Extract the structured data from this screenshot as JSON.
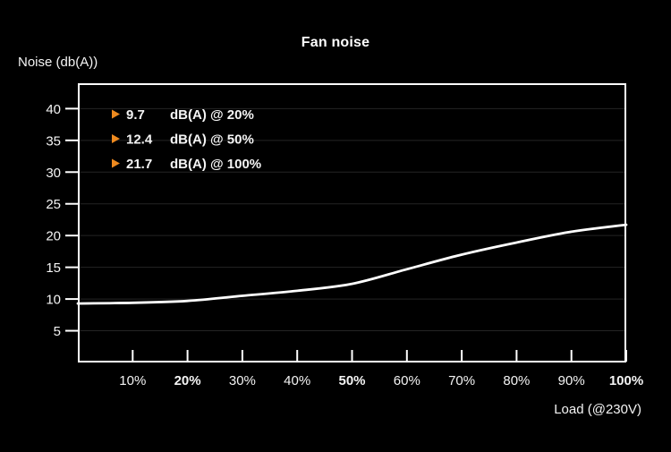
{
  "title": "Fan noise",
  "y_axis_label": "Noise (db(A))",
  "x_axis_label": "Load (@230V)",
  "legend": [
    {
      "marker": "triangle-right-icon",
      "value": "9.7",
      "label": "dB(A) @ 20%"
    },
    {
      "marker": "triangle-right-icon",
      "value": "12.4",
      "label": "dB(A) @ 50%"
    },
    {
      "marker": "triangle-right-icon",
      "value": "21.7",
      "label": "dB(A) @ 100%"
    }
  ],
  "colors": {
    "background": "#000000",
    "axis": "#ffffff",
    "text": "#f4f4f4",
    "curve": "#ffffff",
    "gridline": "#242424",
    "accent_orange": "#ee8a1f"
  },
  "chart_data": {
    "type": "line",
    "title": "Fan noise",
    "xlabel": "Load (@230V)",
    "ylabel": "Noise (db(A))",
    "x": [
      0,
      10,
      20,
      30,
      40,
      50,
      60,
      70,
      80,
      90,
      100
    ],
    "values": [
      9.3,
      9.4,
      9.7,
      10.5,
      11.3,
      12.4,
      14.7,
      17.0,
      18.9,
      20.6,
      21.7
    ],
    "x_tick_labels": [
      "10%",
      "20%",
      "30%",
      "40%",
      "50%",
      "60%",
      "70%",
      "80%",
      "90%",
      "100%"
    ],
    "x_bold_tick_labels": [
      "20%",
      "50%",
      "100%"
    ],
    "y_ticks": [
      5,
      10,
      15,
      20,
      25,
      30,
      35,
      40
    ],
    "xlim": [
      0,
      100
    ],
    "ylim": [
      0,
      44
    ],
    "grid": "horizontal-only",
    "legend_position": "top-left-inside",
    "annotations": [
      {
        "text": "9.7 dB(A) @ 20%"
      },
      {
        "text": "12.4 dB(A) @ 50%"
      },
      {
        "text": "21.7 dB(A) @ 100%"
      }
    ]
  }
}
